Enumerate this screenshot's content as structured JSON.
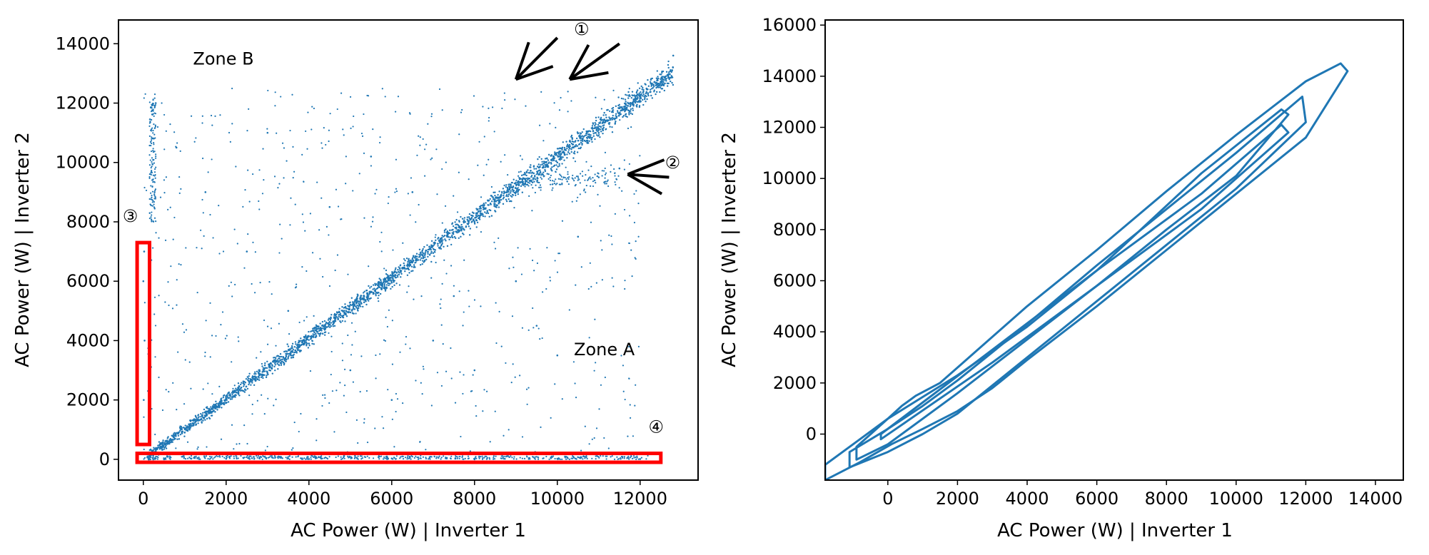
{
  "chart_data": [
    {
      "type": "scatter",
      "xlabel": "AC Power (W) | Inverter 1",
      "ylabel": "AC Power (W) | Inverter 2",
      "xlim": [
        -600,
        13400
      ],
      "ylim": [
        -700,
        14800
      ],
      "xticks": [
        0,
        2000,
        4000,
        6000,
        8000,
        10000,
        12000
      ],
      "yticks": [
        0,
        2000,
        4000,
        6000,
        8000,
        10000,
        12000,
        14000
      ],
      "xtick_labels": [
        "0",
        "2000",
        "4000",
        "6000",
        "8000",
        "10000",
        "12000"
      ],
      "ytick_labels": [
        "0",
        "2000",
        "4000",
        "6000",
        "8000",
        "10000",
        "12000",
        "14000"
      ],
      "marker_color": "#1f77b4",
      "series": [
        {
          "description": "dense diagonal band",
          "points": [
            [
              200,
              150
            ],
            [
              1000,
              900
            ],
            [
              2000,
              1900
            ],
            [
              3000,
              2900
            ],
            [
              4000,
              3900
            ],
            [
              5000,
              4950
            ],
            [
              6000,
              5950
            ],
            [
              7000,
              6950
            ],
            [
              8000,
              8000
            ],
            [
              9000,
              9000
            ],
            [
              10000,
              10000
            ],
            [
              11000,
              11000
            ],
            [
              12000,
              12200
            ],
            [
              12800,
              13600
            ]
          ]
        },
        {
          "description": "sparse outliers",
          "points": [
            [
              300,
              12000
            ],
            [
              800,
              10500
            ],
            [
              1500,
              9000
            ],
            [
              2500,
              7000
            ],
            [
              3000,
              11000
            ],
            [
              3500,
              5000
            ],
            [
              4500,
              8500
            ],
            [
              5000,
              3000
            ],
            [
              5500,
              10200
            ],
            [
              6000,
              2000
            ],
            [
              6500,
              9000
            ],
            [
              7000,
              4000
            ],
            [
              7500,
              5500
            ],
            [
              8000,
              3000
            ],
            [
              9000,
              6000
            ],
            [
              9500,
              4500
            ],
            [
              10000,
              3500
            ],
            [
              10500,
              7500
            ],
            [
              11000,
              9500
            ],
            [
              11500,
              9800
            ]
          ]
        },
        {
          "description": "horizontal cluster near zero",
          "points": [
            [
              500,
              0
            ],
            [
              2000,
              20
            ],
            [
              4000,
              10
            ],
            [
              6000,
              30
            ],
            [
              8000,
              0
            ],
            [
              10000,
              20
            ],
            [
              12000,
              10
            ]
          ]
        },
        {
          "description": "vertical cluster near zero",
          "points": [
            [
              20,
              500
            ],
            [
              10,
              2000
            ],
            [
              30,
              4000
            ],
            [
              0,
              6000
            ],
            [
              20,
              7000
            ]
          ]
        }
      ],
      "annotations": [
        {
          "text": "Zone B",
          "x": 1200,
          "y": 13300
        },
        {
          "text": "Zone A",
          "x": 10400,
          "y": 3500
        },
        {
          "text": "①",
          "x": 10400,
          "y": 14300
        },
        {
          "text": "②",
          "x": 12600,
          "y": 9800
        },
        {
          "text": "③",
          "x": -500,
          "y": 8000
        },
        {
          "text": "④",
          "x": 12200,
          "y": 900
        }
      ],
      "arrows": [
        {
          "from": [
            10000,
            14200
          ],
          "to": [
            9000,
            12800
          ]
        },
        {
          "from": [
            11500,
            14000
          ],
          "to": [
            10300,
            12800
          ]
        },
        {
          "from": [
            12700,
            9500
          ],
          "to": [
            11700,
            9600
          ]
        }
      ],
      "boxes": [
        {
          "x0": -150,
          "x1": 150,
          "y0": 500,
          "y1": 7300,
          "color": "#ff0000"
        },
        {
          "x0": -150,
          "x1": 12500,
          "y0": -100,
          "y1": 200,
          "color": "#ff0000"
        }
      ]
    },
    {
      "type": "contour",
      "xlabel": "AC Power (W) | Inverter 1",
      "ylabel": "AC Power (W) | Inverter 2",
      "xlim": [
        -1800,
        14800
      ],
      "ylim": [
        -1800,
        16200
      ],
      "xticks": [
        0,
        2000,
        4000,
        6000,
        8000,
        10000,
        12000,
        14000
      ],
      "yticks": [
        0,
        2000,
        4000,
        6000,
        8000,
        10000,
        12000,
        14000,
        16000
      ],
      "xtick_labels": [
        "0",
        "2000",
        "4000",
        "6000",
        "8000",
        "10000",
        "12000",
        "14000"
      ],
      "ytick_labels": [
        "0",
        "2000",
        "4000",
        "6000",
        "8000",
        "10000",
        "12000",
        "14000",
        "16000"
      ],
      "line_color": "#1f77b4",
      "contours": [
        {
          "points": [
            [
              -1800,
              -1800
            ],
            [
              -800,
              -1100
            ],
            [
              100,
              -400
            ],
            [
              1000,
              200
            ],
            [
              2000,
              900
            ],
            [
              3000,
              1800
            ],
            [
              4000,
              2900
            ],
            [
              6000,
              5000
            ],
            [
              8000,
              7200
            ],
            [
              10000,
              9400
            ],
            [
              12000,
              11600
            ],
            [
              13200,
              14200
            ],
            [
              13000,
              14500
            ],
            [
              12000,
              13800
            ],
            [
              10000,
              11700
            ],
            [
              8000,
              9500
            ],
            [
              6000,
              7200
            ],
            [
              4000,
              5000
            ],
            [
              2500,
              3200
            ],
            [
              1500,
              2000
            ],
            [
              800,
              1500
            ],
            [
              400,
              1100
            ],
            [
              0,
              600
            ],
            [
              -800,
              -200
            ],
            [
              -1800,
              -1200
            ]
          ]
        },
        {
          "points": [
            [
              -1100,
              -1300
            ],
            [
              0,
              -700
            ],
            [
              1000,
              0
            ],
            [
              2000,
              800
            ],
            [
              4000,
              3000
            ],
            [
              6000,
              5200
            ],
            [
              8000,
              7400
            ],
            [
              10000,
              9600
            ],
            [
              12000,
              12200
            ],
            [
              11900,
              13200
            ],
            [
              10000,
              11000
            ],
            [
              8000,
              8800
            ],
            [
              6000,
              6600
            ],
            [
              4000,
              4300
            ],
            [
              2000,
              2100
            ],
            [
              1000,
              1100
            ],
            [
              0,
              200
            ],
            [
              -1100,
              -700
            ]
          ]
        },
        {
          "points": [
            [
              -900,
              -1000
            ],
            [
              0,
              -400
            ],
            [
              2000,
              1600
            ],
            [
              4000,
              3700
            ],
            [
              6000,
              5800
            ],
            [
              8000,
              8000
            ],
            [
              10000,
              10100
            ],
            [
              11500,
              12500
            ],
            [
              11300,
              12700
            ],
            [
              9000,
              10200
            ],
            [
              6000,
              6400
            ],
            [
              4000,
              4200
            ],
            [
              2000,
              2300
            ],
            [
              0,
              600
            ],
            [
              -900,
              -500
            ]
          ]
        },
        {
          "points": [
            [
              -200,
              -200
            ],
            [
              3000,
              2800
            ],
            [
              6000,
              5800
            ],
            [
              9000,
              8800
            ],
            [
              11500,
              11800
            ],
            [
              11300,
              12100
            ],
            [
              9000,
              9400
            ],
            [
              6000,
              6400
            ],
            [
              3000,
              3300
            ],
            [
              -200,
              0
            ]
          ]
        }
      ]
    }
  ]
}
